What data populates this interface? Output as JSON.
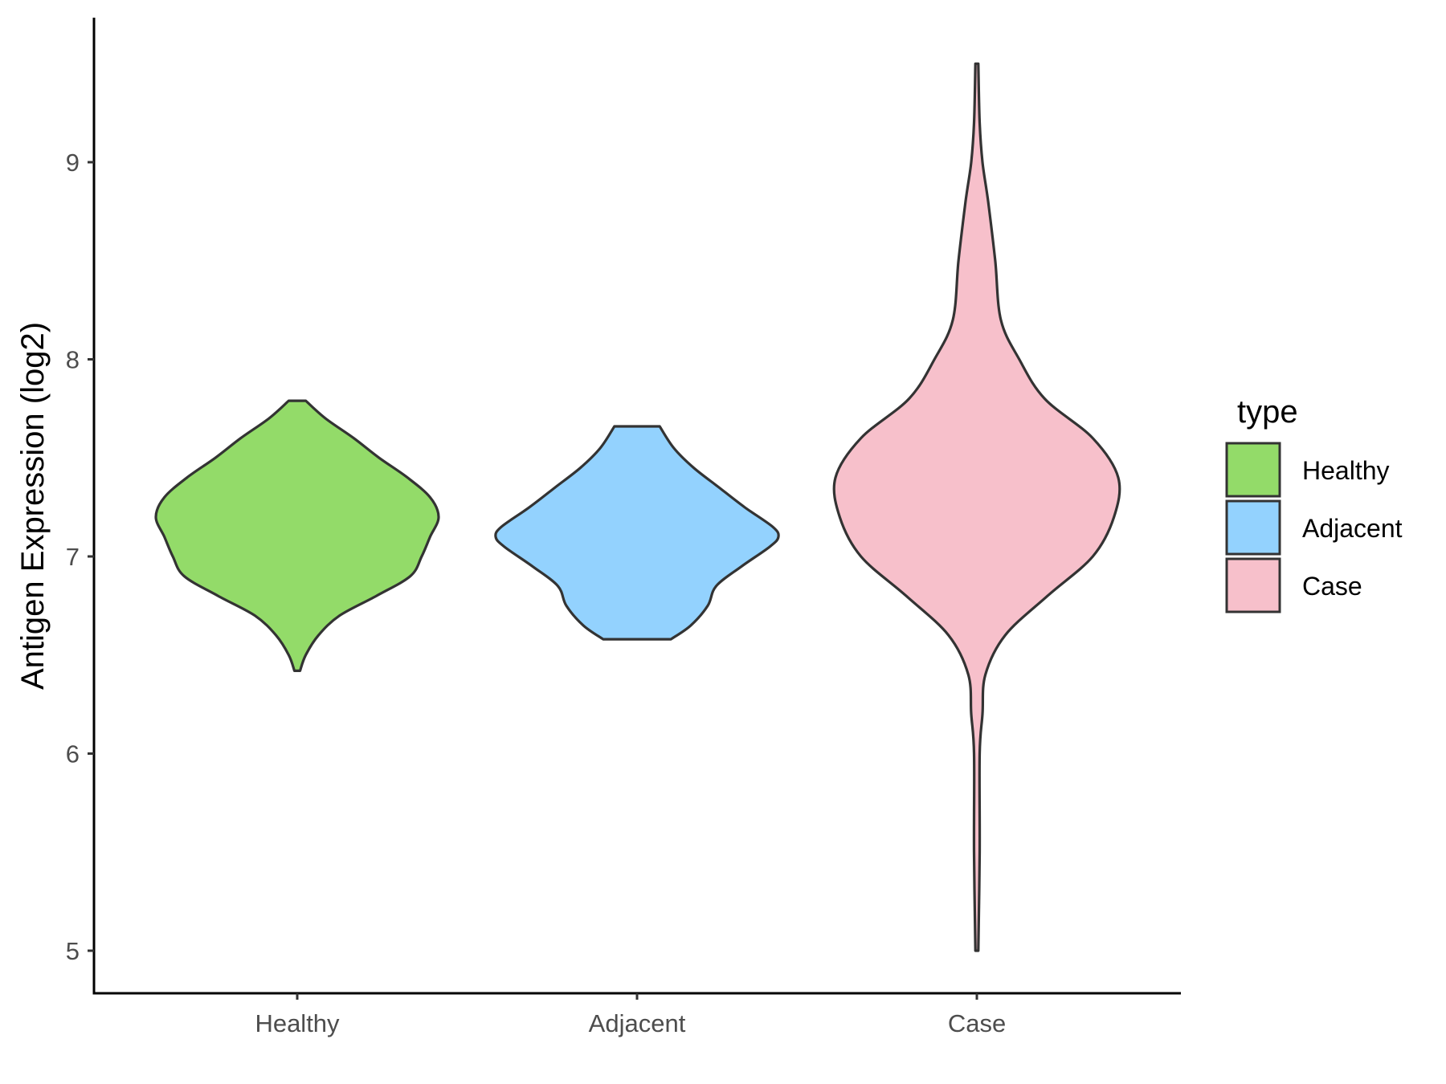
{
  "chart_data": {
    "type": "violin",
    "title": "",
    "xlabel": "",
    "ylabel": "Antigen Expression (log2)",
    "ylim": [
      4.75,
      9.72
    ],
    "yticks": [
      "5",
      "6",
      "7",
      "8",
      "9"
    ],
    "categories": [
      "Healthy",
      "Adjacent",
      "Case"
    ],
    "grid": false,
    "legend": {
      "title": "type",
      "position": "right",
      "entries": [
        {
          "label": "Healthy",
          "color": "#93DB69"
        },
        {
          "label": "Adjacent",
          "color": "#93D2FE"
        },
        {
          "label": "Case",
          "color": "#F7C0CB"
        }
      ]
    },
    "series": [
      {
        "category": "Healthy",
        "color": "#93DB69",
        "min": 6.42,
        "max": 7.79,
        "density_profile": [
          [
            6.42,
            0.02
          ],
          [
            6.5,
            0.06
          ],
          [
            6.6,
            0.15
          ],
          [
            6.7,
            0.3
          ],
          [
            6.8,
            0.56
          ],
          [
            6.9,
            0.8
          ],
          [
            7.0,
            0.88
          ],
          [
            7.1,
            0.94
          ],
          [
            7.2,
            1.0
          ],
          [
            7.3,
            0.94
          ],
          [
            7.4,
            0.78
          ],
          [
            7.5,
            0.58
          ],
          [
            7.6,
            0.4
          ],
          [
            7.7,
            0.2
          ],
          [
            7.79,
            0.06
          ]
        ]
      },
      {
        "category": "Adjacent",
        "color": "#93D2FE",
        "min": 6.58,
        "max": 7.66,
        "density_profile": [
          [
            6.58,
            0.24
          ],
          [
            6.65,
            0.38
          ],
          [
            6.75,
            0.5
          ],
          [
            6.85,
            0.56
          ],
          [
            6.95,
            0.74
          ],
          [
            7.05,
            0.94
          ],
          [
            7.1,
            1.0
          ],
          [
            7.15,
            0.96
          ],
          [
            7.25,
            0.76
          ],
          [
            7.35,
            0.58
          ],
          [
            7.45,
            0.4
          ],
          [
            7.55,
            0.26
          ],
          [
            7.66,
            0.16
          ]
        ]
      },
      {
        "category": "Case",
        "color": "#F7C0CB",
        "min": 5.0,
        "max": 9.5,
        "density_profile": [
          [
            5.0,
            0.01
          ],
          [
            5.5,
            0.02
          ],
          [
            6.0,
            0.02
          ],
          [
            6.2,
            0.04
          ],
          [
            6.4,
            0.06
          ],
          [
            6.6,
            0.2
          ],
          [
            6.8,
            0.5
          ],
          [
            7.0,
            0.82
          ],
          [
            7.2,
            0.97
          ],
          [
            7.4,
            1.0
          ],
          [
            7.6,
            0.82
          ],
          [
            7.8,
            0.48
          ],
          [
            8.0,
            0.3
          ],
          [
            8.2,
            0.17
          ],
          [
            8.5,
            0.13
          ],
          [
            8.8,
            0.08
          ],
          [
            9.0,
            0.04
          ],
          [
            9.2,
            0.02
          ],
          [
            9.5,
            0.01
          ]
        ]
      }
    ]
  }
}
